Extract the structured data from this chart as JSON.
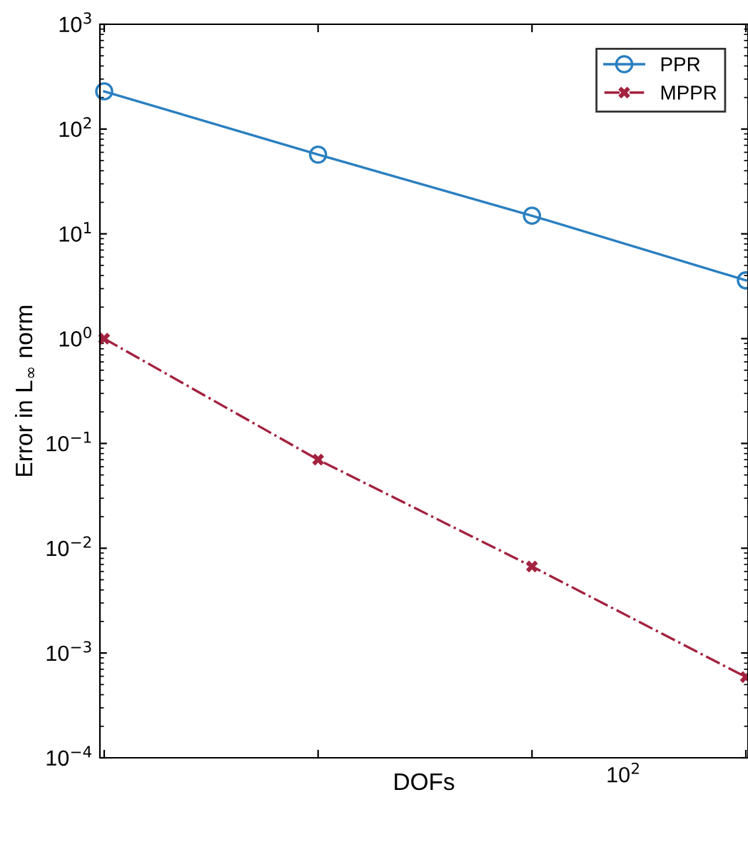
{
  "chart_data": {
    "type": "line",
    "xlabel": "DOFs",
    "ylabel": "Error in L$_{∞}$ norm",
    "log": "y",
    "categories": [
      null,
      null,
      null,
      null
    ],
    "annotations": [
      "10$^{2}$"
    ],
    "series": [
      {
        "name": "PPR",
        "color": "#2a7fc0",
        "values": [
          229,
          57,
          14.9,
          3.6
        ],
        "marker": "circle",
        "line_style": "solid"
      },
      {
        "name": "MPPR",
        "color": "#a3223f",
        "values": [
          1.0,
          0.07,
          0.0067,
          0.00059
        ],
        "marker": "cross",
        "line_style": "dashdot"
      }
    ],
    "ylim": [
      0.0001,
      1000
    ],
    "yticks": [
      {
        "value": 0.0001,
        "label": "10$^{−4}$"
      },
      {
        "value": 0.001,
        "label": "10$^{−3}$"
      },
      {
        "value": 0.01,
        "label": "10$^{−2}$"
      },
      {
        "value": 0.1,
        "label": "10$^{−1}$"
      },
      {
        "value": 1,
        "label": "10$^{0}$"
      },
      {
        "value": 10,
        "label": "10$^{1}$"
      },
      {
        "value": 100,
        "label": "10$^{2}$"
      },
      {
        "value": 1000,
        "label": "10$^{3}$"
      }
    ],
    "grid": false,
    "legend": "top right"
  }
}
